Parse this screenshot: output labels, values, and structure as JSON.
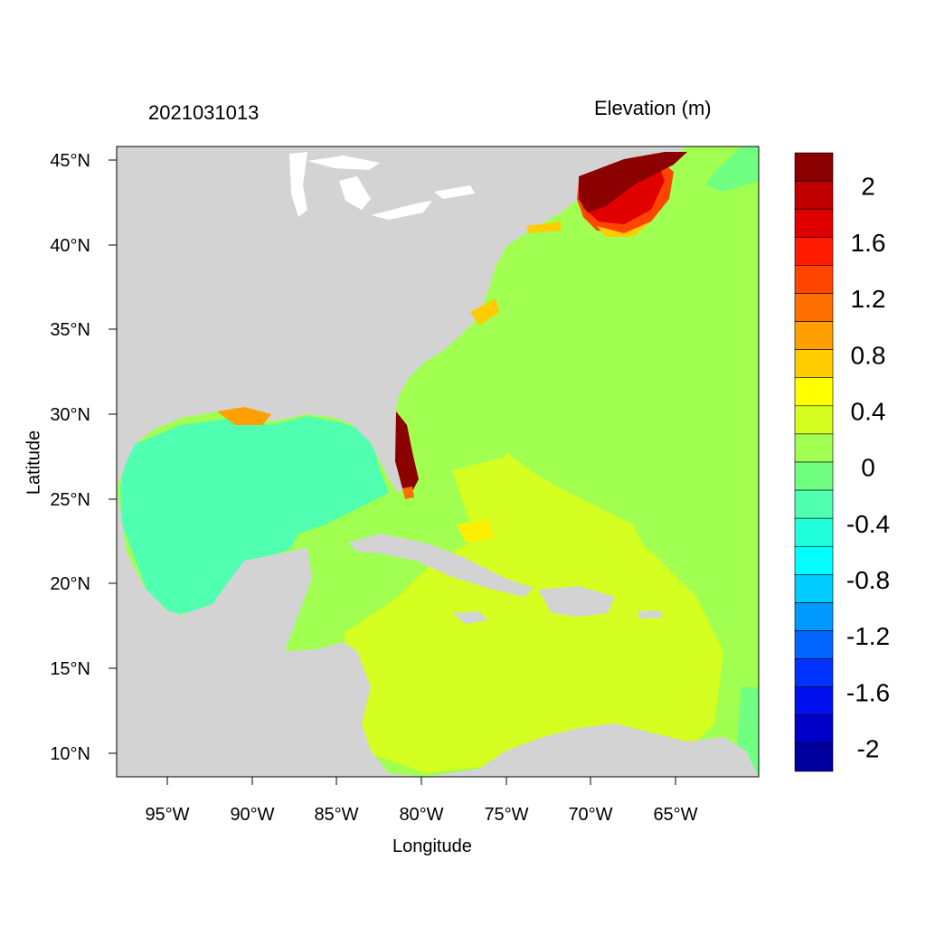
{
  "timestamp": "2021031013",
  "legend_title": "Elevation (m)",
  "axes": {
    "xlabel": "Longitude",
    "ylabel": "Latitude",
    "x_ticks": [
      "95°W",
      "90°W",
      "85°W",
      "80°W",
      "75°W",
      "70°W",
      "65°W"
    ],
    "y_ticks": [
      "45°N",
      "40°N",
      "35°N",
      "30°N",
      "25°N",
      "20°N",
      "15°N",
      "10°N"
    ]
  },
  "colorbar": {
    "labels": [
      "2",
      "1.6",
      "1.2",
      "0.8",
      "0.4",
      "0",
      "-0.4",
      "-0.8",
      "-1.2",
      "-1.6",
      "-2"
    ],
    "colors_top_to_bottom": [
      "#8b0000",
      "#c00000",
      "#e00000",
      "#ff1a00",
      "#ff4500",
      "#ff7000",
      "#ff9f00",
      "#ffcc00",
      "#ffff00",
      "#d4ff20",
      "#a0ff50",
      "#70ff80",
      "#50ffb0",
      "#20ffdc",
      "#00ffff",
      "#00ccff",
      "#0099ff",
      "#0066ff",
      "#0033ff",
      "#0010ee",
      "#0000c8",
      "#0000a0"
    ]
  },
  "colors": {
    "land": "#d3d3d3",
    "lakes": "#ffffff"
  }
}
